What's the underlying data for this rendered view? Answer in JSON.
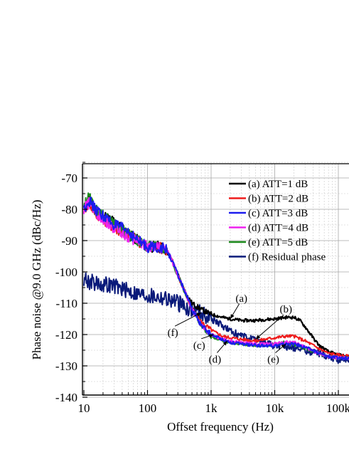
{
  "chart_data": {
    "type": "line",
    "xlabel": "Offset frequency (Hz)",
    "ylabel": "Phase noise @9.0 GHz (dBc/Hz)",
    "xscale": "log",
    "xlim": [
      10,
      150000
    ],
    "ylim": [
      -140,
      -65
    ],
    "x_ticks": [
      10,
      100,
      1000,
      10000,
      100000
    ],
    "x_tick_labels": [
      "10",
      "100",
      "1k",
      "10k",
      "100k"
    ],
    "y_ticks": [
      -70,
      -80,
      -90,
      -100,
      -110,
      -120,
      -130,
      -140
    ],
    "y_tick_labels": [
      "-70",
      "-80",
      "-90",
      "-100",
      "-110",
      "-120",
      "-130",
      "-140"
    ],
    "grid": true,
    "legend_position": "top-right",
    "series": [
      {
        "name": "(a) ATT=1 dB",
        "color": "#000000",
        "x": [
          10,
          12,
          15,
          20,
          30,
          50,
          70,
          100,
          150,
          200,
          250,
          300,
          400,
          500,
          700,
          1000,
          1500,
          2000,
          3000,
          5000,
          7000,
          10000,
          15000,
          20000,
          25000,
          30000,
          40000,
          50000,
          70000,
          100000,
          150000
        ],
        "y": [
          -80,
          -77,
          -80,
          -82,
          -84,
          -88,
          -90,
          -92,
          -92,
          -93,
          -97,
          -101,
          -107,
          -110,
          -112,
          -113.5,
          -114.5,
          -115,
          -115.5,
          -115.5,
          -115.2,
          -115,
          -114.5,
          -114.5,
          -115.5,
          -117.5,
          -121,
          -123.5,
          -125.5,
          -126.5,
          -127
        ]
      },
      {
        "name": "(b) ATT=2 dB",
        "color": "#ee1c1c",
        "x": [
          10,
          12,
          15,
          20,
          30,
          50,
          70,
          100,
          150,
          200,
          250,
          300,
          400,
          500,
          700,
          1000,
          1500,
          2000,
          3000,
          5000,
          7000,
          10000,
          15000,
          20000,
          30000,
          50000,
          70000,
          100000,
          150000
        ],
        "y": [
          -80,
          -78,
          -81,
          -83,
          -86,
          -88,
          -90,
          -92,
          -92,
          -93,
          -97,
          -101,
          -107,
          -112,
          -116,
          -118.5,
          -120.5,
          -121,
          -121.5,
          -122,
          -121.5,
          -121,
          -120.5,
          -120.5,
          -122,
          -124.5,
          -126,
          -126.5,
          -127
        ]
      },
      {
        "name": "(c) ATT=3 dB",
        "color": "#1c1cee",
        "x": [
          10,
          12,
          15,
          20,
          30,
          50,
          70,
          100,
          150,
          200,
          250,
          300,
          400,
          500,
          700,
          1000,
          1500,
          2000,
          3000,
          5000,
          7000,
          10000,
          15000,
          20000,
          30000,
          50000,
          70000,
          100000,
          150000
        ],
        "y": [
          -80,
          -77,
          -80,
          -82,
          -85,
          -87,
          -90,
          -92,
          -92,
          -93,
          -97,
          -101,
          -107,
          -112,
          -117,
          -120,
          -121.5,
          -122.5,
          -123,
          -123.5,
          -123.5,
          -123.5,
          -123,
          -123,
          -124,
          -126,
          -127,
          -127.5,
          -127.5
        ]
      },
      {
        "name": "(d) ATT=4 dB",
        "color": "#ee22ee",
        "x": [
          10,
          12,
          15,
          20,
          30,
          50,
          70,
          100,
          150,
          200,
          250,
          300,
          400,
          500,
          700,
          1000,
          1500,
          2000,
          3000,
          5000,
          7000,
          10000,
          15000,
          20000,
          30000,
          50000,
          70000,
          100000,
          150000
        ],
        "y": [
          -80,
          -78,
          -81,
          -83,
          -86,
          -89,
          -90,
          -92,
          -92,
          -93,
          -97,
          -101,
          -107,
          -112,
          -117,
          -120,
          -121.5,
          -122,
          -122.5,
          -123,
          -123,
          -123,
          -122.5,
          -122.5,
          -124,
          -126,
          -127,
          -127.5,
          -127.5
        ]
      },
      {
        "name": "(e) ATT=5 dB",
        "color": "#1c8a1c",
        "x": [
          10,
          12,
          15,
          20,
          30,
          50,
          70,
          100,
          150,
          200,
          250,
          300,
          400,
          500,
          700,
          1000,
          1500,
          2000,
          3000,
          5000,
          7000,
          10000,
          15000,
          20000,
          30000,
          50000,
          70000,
          100000,
          150000
        ],
        "y": [
          -79,
          -76,
          -80,
          -82,
          -85,
          -88,
          -90,
          -92,
          -92,
          -93,
          -97,
          -101,
          -107,
          -112,
          -117,
          -120.5,
          -122,
          -122.5,
          -123,
          -123.5,
          -123.5,
          -123,
          -122.5,
          -123,
          -124.5,
          -126,
          -127,
          -127.5,
          -127.5
        ]
      },
      {
        "name": "(f) Residual phase",
        "color": "#0a1a7a",
        "x": [
          10,
          12,
          15,
          20,
          30,
          50,
          70,
          100,
          150,
          200,
          300,
          500,
          700,
          1000,
          1500,
          2000,
          3000,
          5000,
          7000,
          10000,
          15000,
          20000,
          30000,
          50000,
          70000,
          100000,
          150000
        ],
        "y": [
          -102,
          -103,
          -103.5,
          -104,
          -104.5,
          -106,
          -107,
          -107.5,
          -108,
          -108.5,
          -110,
          -112,
          -113,
          -115,
          -117,
          -119,
          -120.5,
          -122,
          -122.5,
          -123.5,
          -124,
          -124,
          -125,
          -126,
          -127,
          -128,
          -128
        ]
      }
    ],
    "annotations": [
      {
        "label": "(a)",
        "x": 3000,
        "y": -109.5,
        "arrow_to": [
          2000,
          -115
        ]
      },
      {
        "label": "(b)",
        "x": 15000,
        "y": -113,
        "arrow_to": [
          5000,
          -121.5
        ]
      },
      {
        "label": "(c)",
        "x": 650,
        "y": -124.5,
        "arrow_to": [
          1100,
          -120
        ]
      },
      {
        "label": "(d)",
        "x": 1150,
        "y": -129,
        "arrow_to": [
          1800,
          -122
        ]
      },
      {
        "label": "(e)",
        "x": 9500,
        "y": -129,
        "arrow_to": [
          15000,
          -123
        ]
      },
      {
        "label": "(f)",
        "x": 250,
        "y": -120.5,
        "arrow_to": [
          700,
          -113
        ]
      }
    ]
  }
}
